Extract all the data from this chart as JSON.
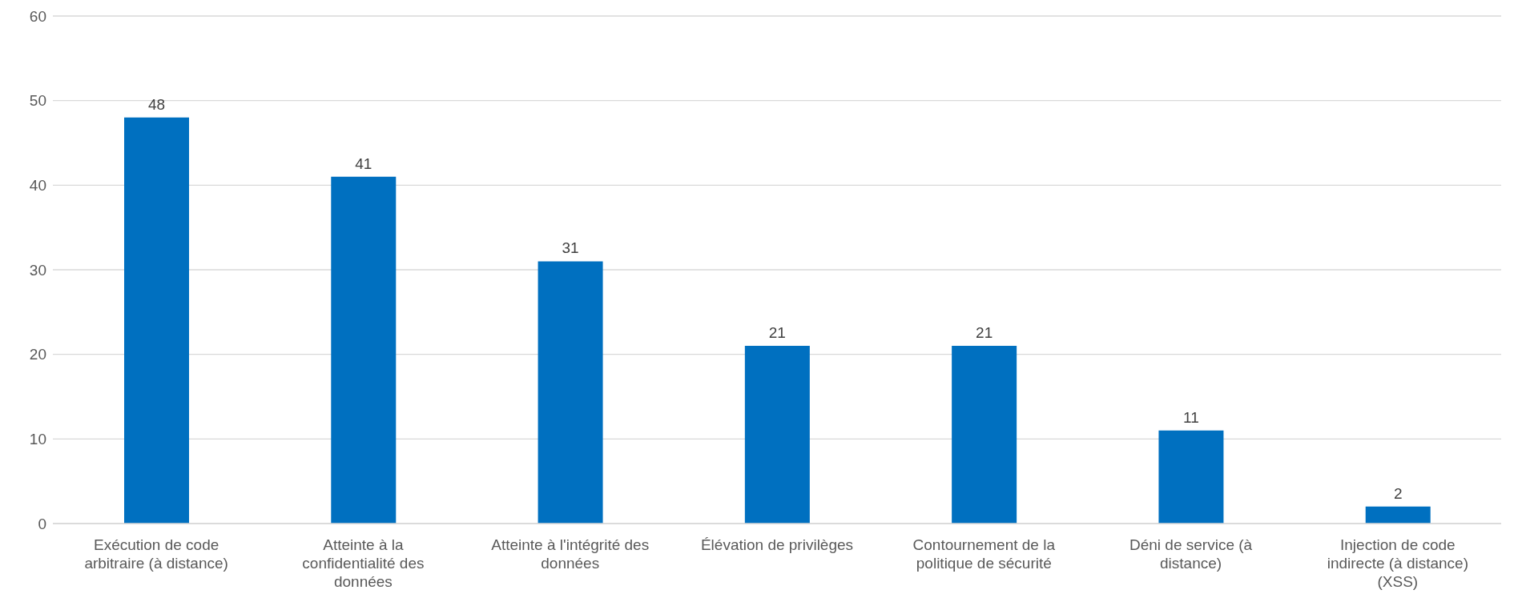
{
  "chart_data": {
    "type": "bar",
    "categories": [
      "Exécution de code arbitraire (à distance)",
      "Atteinte à la confidentialité des données",
      "Atteinte à l'intégrité des données",
      "Élévation de privilèges",
      "Contournement de la politique de sécurité",
      "Déni de service (à distance)",
      "Injection de code indirecte (à distance) (XSS)"
    ],
    "values": [
      48,
      41,
      31,
      21,
      21,
      11,
      2
    ],
    "color": "#0070c0",
    "ylim": [
      0,
      60
    ],
    "yticks": [
      0,
      10,
      20,
      30,
      40,
      50,
      60
    ],
    "grid": "y",
    "data_labels": true
  }
}
